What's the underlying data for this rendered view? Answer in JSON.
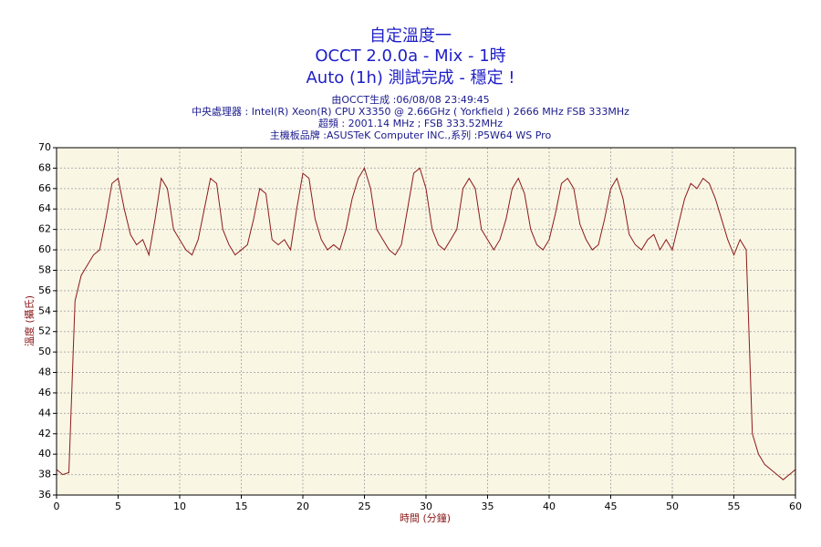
{
  "chart_data": {
    "type": "line",
    "title": "自定溫度一",
    "subtitle": "OCCT 2.0.0a - Mix - 1時",
    "status": "Auto (1h) 測試完成 - 穩定 !",
    "info": [
      "由OCCT生成 :06/08/08 23:49:45",
      "中央處理器 : Intel(R) Xeon(R) CPU X3350 @ 2.66GHz ( Yorkfield ) 2666 MHz FSB 333MHz",
      "超頻 : 2001.14 MHz ; FSB 333.52MHz",
      "主機板品牌 :ASUSTeK Computer INC.,系列 :P5W64 WS Pro"
    ],
    "xlabel": "時間 (分鐘)",
    "ylabel": "溫度 (攝氏)",
    "xlim": [
      0,
      60
    ],
    "ylim": [
      36,
      70
    ],
    "xticks": [
      0,
      5,
      10,
      15,
      20,
      25,
      30,
      35,
      40,
      45,
      50,
      55,
      60
    ],
    "yticks": [
      36,
      38,
      40,
      42,
      44,
      46,
      48,
      50,
      52,
      54,
      56,
      58,
      60,
      62,
      64,
      66,
      68,
      70
    ],
    "grid": true,
    "x": [
      0,
      0.5,
      1,
      1.5,
      2,
      2.5,
      3,
      3.5,
      4,
      4.5,
      5,
      5.5,
      6,
      6.5,
      7,
      7.5,
      8,
      8.5,
      9,
      9.5,
      10,
      10.5,
      11,
      11.5,
      12,
      12.5,
      13,
      13.5,
      14,
      14.5,
      15,
      15.5,
      16,
      16.5,
      17,
      17.5,
      18,
      18.5,
      19,
      19.5,
      20,
      20.5,
      21,
      21.5,
      22,
      22.5,
      23,
      23.5,
      24,
      24.5,
      25,
      25.5,
      26,
      26.5,
      27,
      27.5,
      28,
      28.5,
      29,
      29.5,
      30,
      30.5,
      31,
      31.5,
      32,
      32.5,
      33,
      33.5,
      34,
      34.5,
      35,
      35.5,
      36,
      36.5,
      37,
      37.5,
      38,
      38.5,
      39,
      39.5,
      40,
      40.5,
      41,
      41.5,
      42,
      42.5,
      43,
      43.5,
      44,
      44.5,
      45,
      45.5,
      46,
      46.5,
      47,
      47.5,
      48,
      48.5,
      49,
      49.5,
      50,
      50.5,
      51,
      51.5,
      52,
      52.5,
      53,
      53.5,
      54,
      54.5,
      55,
      55.5,
      56,
      56.5,
      57,
      57.5,
      58,
      58.5,
      59,
      59.5,
      60
    ],
    "series": [
      {
        "color": "#8b1a1a",
        "values": [
          38.5,
          38,
          38.2,
          55,
          57.5,
          58.5,
          59.5,
          60,
          63,
          66.5,
          67,
          64,
          61.5,
          60.5,
          61,
          59.5,
          63,
          67,
          66,
          62,
          61,
          60,
          59.5,
          61,
          64,
          67,
          66.5,
          62,
          60.5,
          59.5,
          60,
          60.5,
          63,
          66,
          65.5,
          61,
          60.5,
          61,
          60,
          64,
          67.5,
          67,
          63,
          61,
          60,
          60.5,
          60,
          62,
          65,
          67,
          68,
          66,
          62,
          61,
          60,
          59.5,
          60.5,
          64,
          67.5,
          68,
          66,
          62,
          60.5,
          60,
          61,
          62,
          66,
          67,
          66,
          62,
          61,
          60,
          61,
          63,
          66,
          67,
          65.5,
          62,
          60.5,
          60,
          61,
          63.5,
          66.5,
          67,
          66,
          62.5,
          61,
          60,
          60.5,
          63,
          66,
          67,
          65,
          61.5,
          60.5,
          60,
          61,
          61.5,
          60,
          61,
          60,
          62.5,
          65,
          66.5,
          66,
          67,
          66.5,
          65,
          63,
          61,
          59.5,
          61,
          60,
          42,
          40,
          39,
          38.5,
          38,
          37.5,
          38,
          38.5
        ]
      }
    ]
  }
}
